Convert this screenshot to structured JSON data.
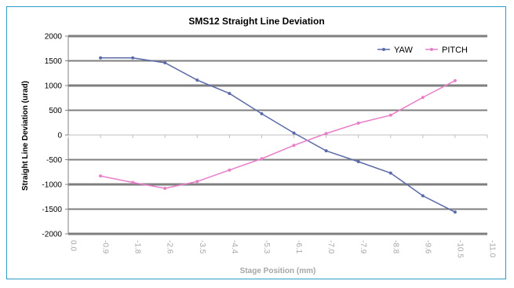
{
  "chart_data": {
    "type": "line",
    "title": "SMS12 Straight Line Deviation",
    "xlabel": "Stage Position (mm)",
    "ylabel": "Straight Line Deviation (urad)",
    "x_tick_labels": [
      "0.0",
      "-0.9",
      "-1.8",
      "-2.6",
      "-3.5",
      "-4.4",
      "-5.3",
      "-6.1",
      "-7.0",
      "-7.9",
      "-8.8",
      "-9.6",
      "-10.5",
      "-11.0"
    ],
    "categories": [
      "-0.9",
      "-1.8",
      "-2.6",
      "-3.5",
      "-4.4",
      "-5.3",
      "-6.1",
      "-7.0",
      "-7.9",
      "-8.8",
      "-9.6",
      "-10.5"
    ],
    "ylim": [
      -2000,
      2000
    ],
    "y_ticks": [
      2000,
      1500,
      1000,
      500,
      0,
      -500,
      -1000,
      -1500,
      -2000
    ],
    "grid": "horizontal",
    "legend_position": "top-right",
    "series": [
      {
        "name": "YAW",
        "color": "#5b6aa8",
        "values": [
          1560,
          1560,
          1460,
          1110,
          840,
          430,
          40,
          -320,
          -540,
          -770,
          -1230,
          -1560
        ]
      },
      {
        "name": "PITCH",
        "color": "#e87fc8",
        "values": [
          -830,
          -960,
          -1080,
          -940,
          -710,
          -480,
          -210,
          30,
          240,
          400,
          760,
          1100
        ]
      }
    ]
  }
}
